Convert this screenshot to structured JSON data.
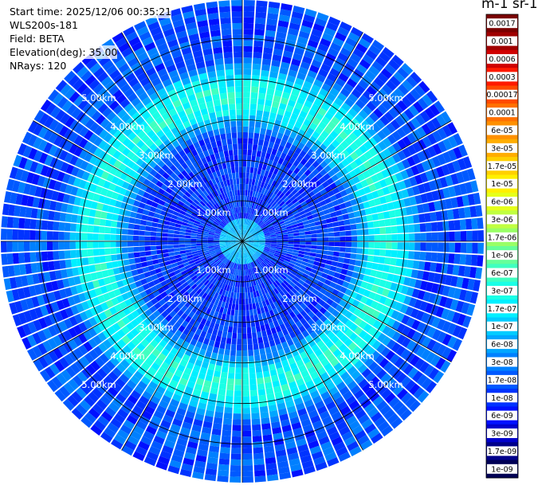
{
  "info": {
    "start_time": "Start time: 2025/12/06 00:35:21",
    "instrument": "WLS200s-181",
    "field": "Field: BETA",
    "elevation": "Elevation(deg): 35.00",
    "nrays": "NRays: 120"
  },
  "chart_data": {
    "type": "heatmap",
    "projection": "polar",
    "field": "BETA",
    "elevation_deg": 35.0,
    "n_rays": 120,
    "range_rings_km": [
      1,
      2,
      3,
      4,
      5
    ],
    "range_labels": [
      "1.00km",
      "2.00km",
      "3.00km",
      "4.00km",
      "5.00km"
    ],
    "max_range_km": 5.95,
    "colorbar": {
      "unit_label": "m-1 sr-1",
      "tick_labels": [
        "0.0017",
        "0.001",
        "0.0006",
        "0.0003",
        "0.00017",
        "0.0001",
        "6e-05",
        "3e-05",
        "1.7e-05",
        "1e-05",
        "6e-06",
        "3e-06",
        "1.7e-06",
        "1e-06",
        "6e-07",
        "3e-07",
        "1.7e-07",
        "1e-07",
        "6e-08",
        "3e-08",
        "1.7e-08",
        "1e-08",
        "6e-09",
        "3e-09",
        "1.7e-09",
        "1e-09"
      ],
      "colors": [
        "#7a0000",
        "#a00000",
        "#d00000",
        "#ff1a00",
        "#ff4a00",
        "#ff7000",
        "#ff9000",
        "#ffad00",
        "#ffd000",
        "#fff000",
        "#e6ff1a",
        "#c0ff40",
        "#99ff66",
        "#66ff99",
        "#40ffc0",
        "#1affe6",
        "#00f0ff",
        "#00ccff",
        "#00a6ff",
        "#0080ff",
        "#0059ff",
        "#0033ff",
        "#0010ff",
        "#0000cc",
        "#00008a",
        "#000055"
      ]
    },
    "background_level": "1e-08",
    "annulus": {
      "range_km": [
        2.6,
        4.6
      ],
      "level": "3e-07"
    },
    "inner_disc": {
      "range_km": [
        0,
        0.6
      ],
      "level": "1e-07"
    },
    "grid": true
  }
}
